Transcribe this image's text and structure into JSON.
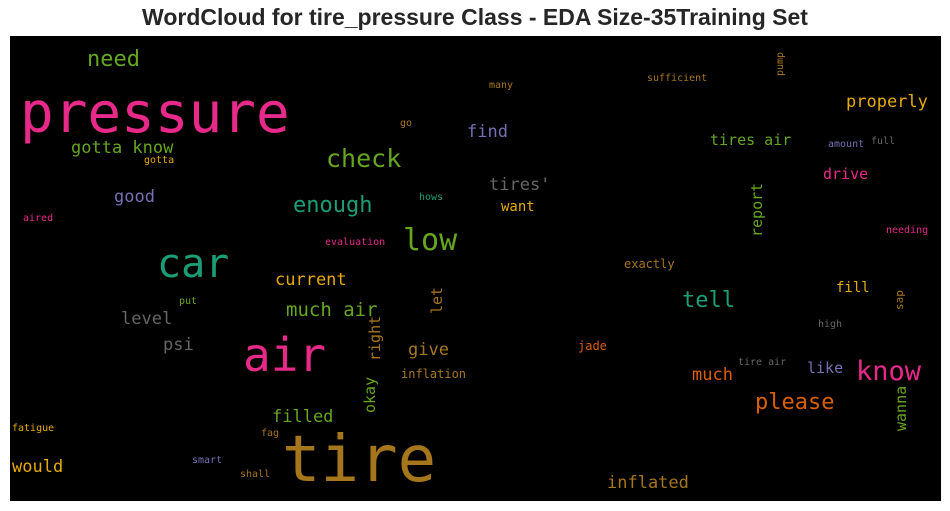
{
  "title": "WordCloud for tire_pressure Class - EDA Size-35Training Set",
  "words": [
    {
      "text": "pressure",
      "color": "#e7298a"
    },
    {
      "text": "tire",
      "color": "#a6761d"
    },
    {
      "text": "air",
      "color": "#e7298a"
    },
    {
      "text": "car",
      "color": "#1b9e77"
    },
    {
      "text": "low",
      "color": "#66a61e"
    },
    {
      "text": "know",
      "color": "#e7298a"
    },
    {
      "text": "check",
      "color": "#66a61e"
    },
    {
      "text": "please",
      "color": "#d95f02"
    },
    {
      "text": "tell",
      "color": "#1b9e77"
    },
    {
      "text": "enough",
      "color": "#1b9e77"
    },
    {
      "text": "need",
      "color": "#66a61e"
    },
    {
      "text": "much air",
      "color": "#66a61e"
    },
    {
      "text": "properly",
      "color": "#e6ab02"
    },
    {
      "text": "inflated",
      "color": "#a6761d"
    },
    {
      "text": "gotta know",
      "color": "#66a61e"
    },
    {
      "text": "current",
      "color": "#e6ab02"
    },
    {
      "text": "tires'",
      "color": "#666666"
    },
    {
      "text": "filled",
      "color": "#66a61e"
    },
    {
      "text": "much",
      "color": "#d95f02"
    },
    {
      "text": "find",
      "color": "#7570b3"
    },
    {
      "text": "level",
      "color": "#666666"
    },
    {
      "text": "give",
      "color": "#a6761d"
    },
    {
      "text": "would",
      "color": "#e6ab02"
    },
    {
      "text": "good",
      "color": "#7570b3"
    },
    {
      "text": "psi",
      "color": "#666666"
    },
    {
      "text": "tires air",
      "color": "#66a61e"
    },
    {
      "text": "drive",
      "color": "#e7298a"
    },
    {
      "text": "like",
      "color": "#7570b3"
    },
    {
      "text": "right",
      "color": "#a6761d"
    },
    {
      "text": "let",
      "color": "#a6761d"
    },
    {
      "text": "report",
      "color": "#66a61e"
    },
    {
      "text": "okay",
      "color": "#66a61e"
    },
    {
      "text": "wanna",
      "color": "#66a61e"
    },
    {
      "text": "want",
      "color": "#e6ab02"
    },
    {
      "text": "fill",
      "color": "#e6ab02"
    },
    {
      "text": "exactly",
      "color": "#a6761d"
    },
    {
      "text": "inflation",
      "color": "#a6761d"
    },
    {
      "text": "jade",
      "color": "#d95f02"
    },
    {
      "text": "sap",
      "color": "#a6761d"
    },
    {
      "text": "sufficient",
      "color": "#a6761d"
    },
    {
      "text": "many",
      "color": "#a6761d"
    },
    {
      "text": "go",
      "color": "#a6761d"
    },
    {
      "text": "pump",
      "color": "#a6761d"
    },
    {
      "text": "amount",
      "color": "#7570b3"
    },
    {
      "text": "full",
      "color": "#666666"
    },
    {
      "text": "gotta",
      "color": "#e6ab02"
    },
    {
      "text": "hows",
      "color": "#1b9e77"
    },
    {
      "text": "aired",
      "color": "#e7298a"
    },
    {
      "text": "evaluation",
      "color": "#e7298a"
    },
    {
      "text": "needing",
      "color": "#e7298a"
    },
    {
      "text": "put",
      "color": "#66a61e"
    },
    {
      "text": "high",
      "color": "#666666"
    },
    {
      "text": "tire air",
      "color": "#666666"
    },
    {
      "text": "fatigue",
      "color": "#e6ab02"
    },
    {
      "text": "fag",
      "color": "#a6761d"
    },
    {
      "text": "smart",
      "color": "#7570b3"
    },
    {
      "text": "shall",
      "color": "#a6761d"
    }
  ]
}
